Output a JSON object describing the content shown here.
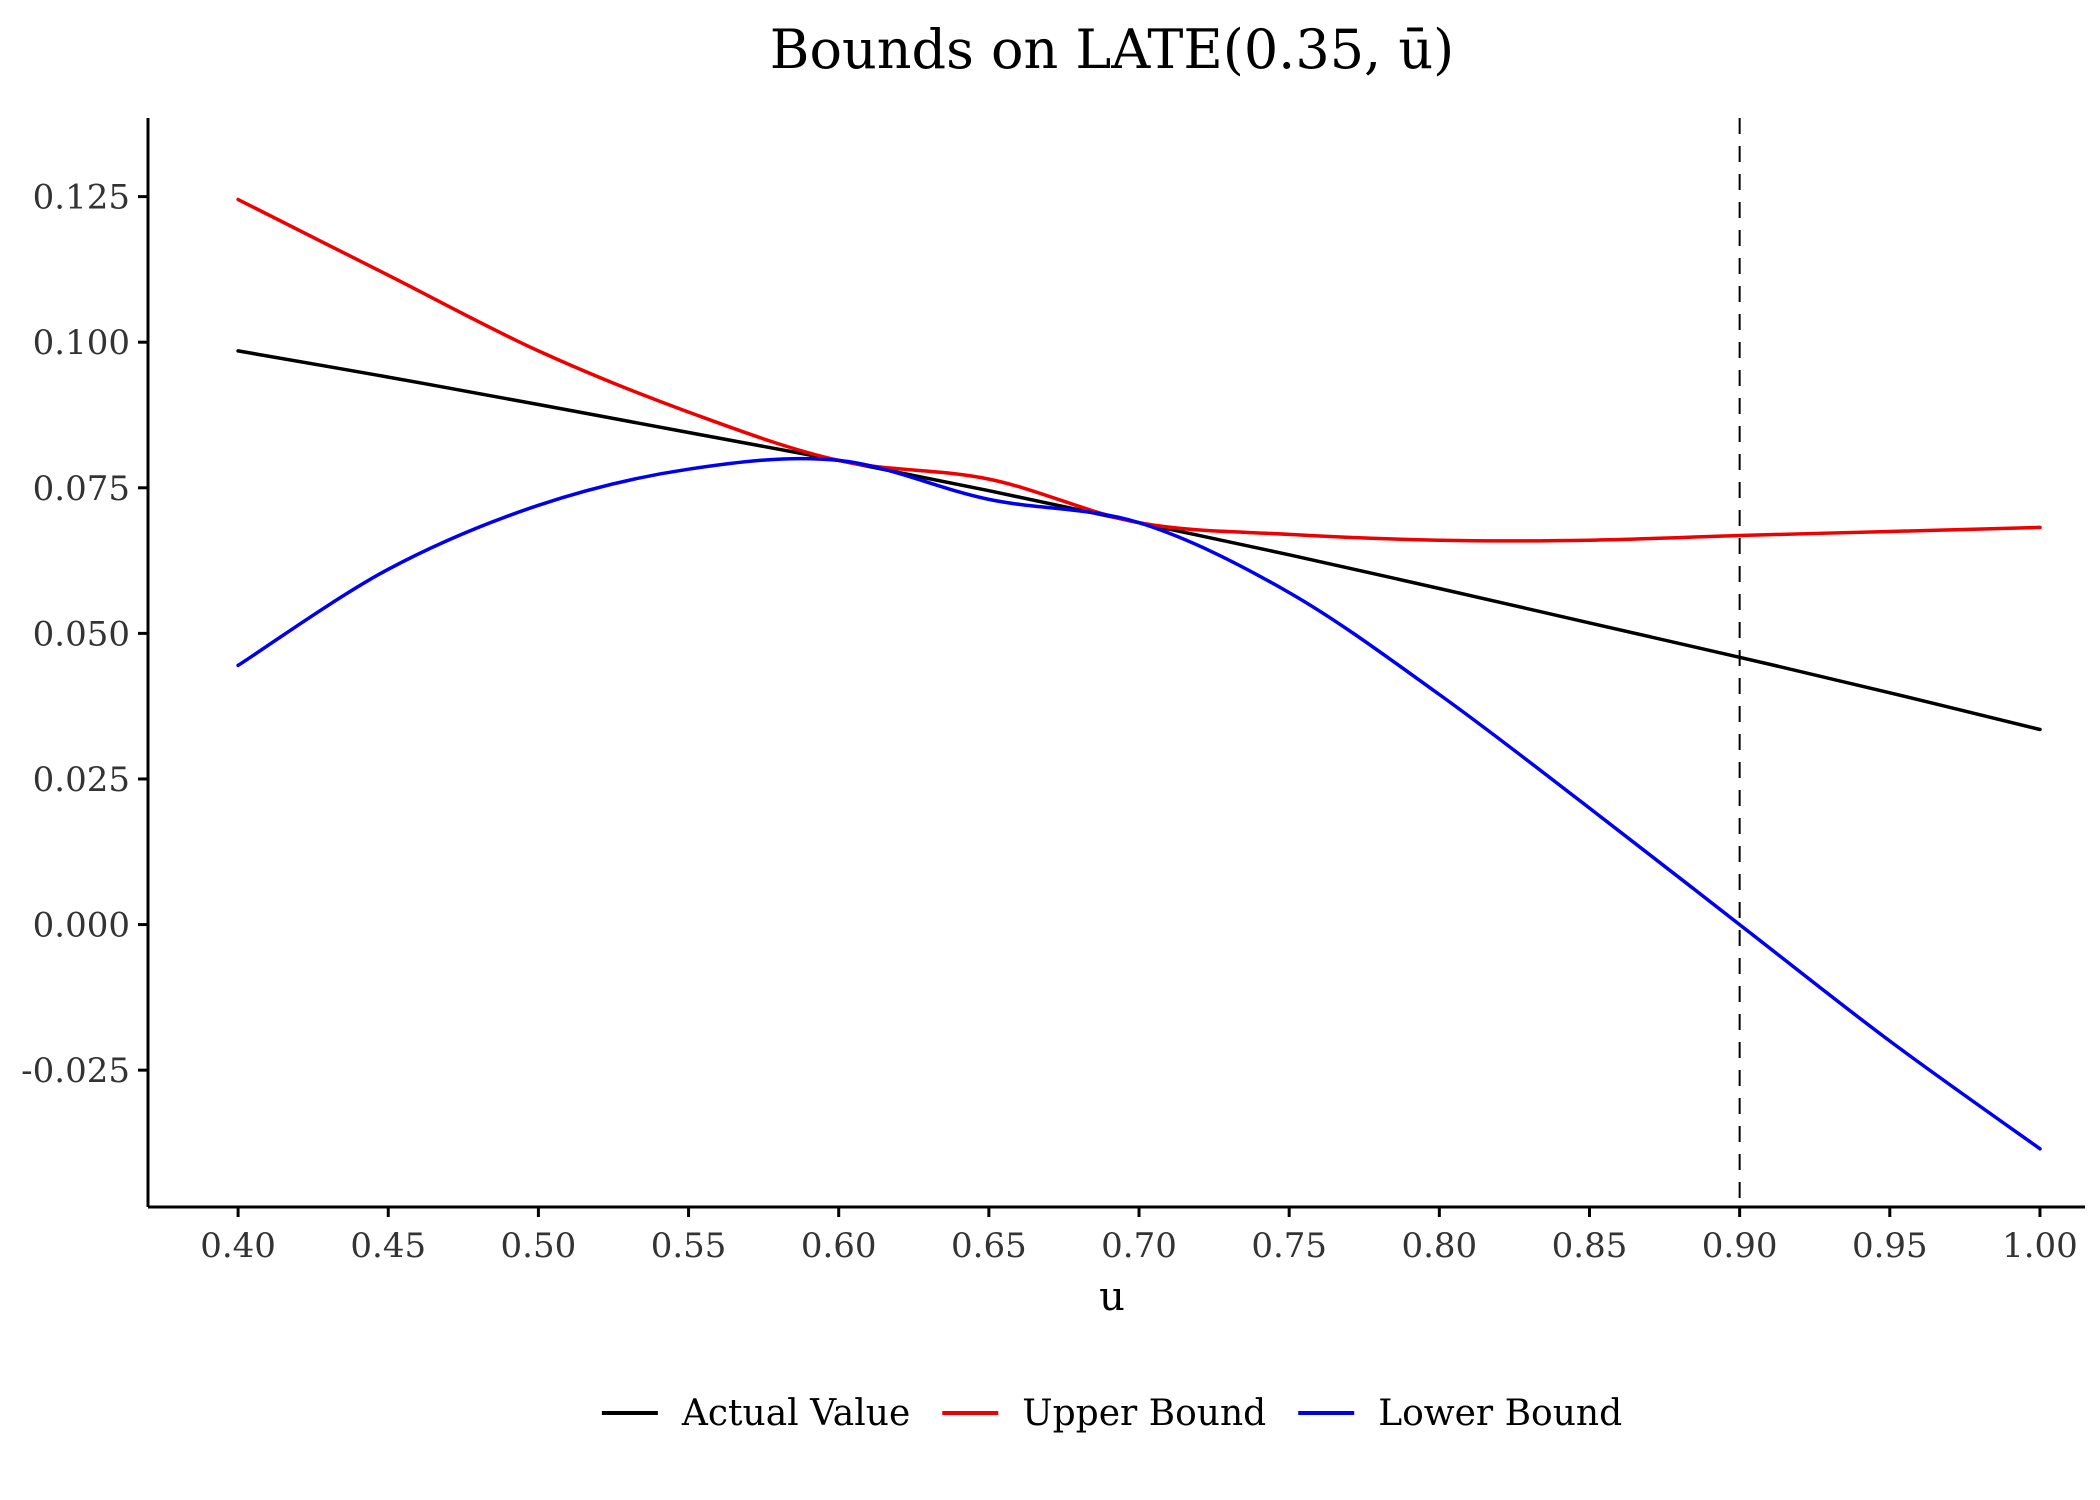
{
  "chart_data": {
    "type": "line",
    "title": "Bounds on LATE(0.35, ū)",
    "xlabel": "u",
    "ylabel": "",
    "xlim": [
      0.37,
      1.015
    ],
    "ylim": [
      -0.0485,
      0.1385
    ],
    "x_ticks": [
      0.4,
      0.45,
      0.5,
      0.55,
      0.6,
      0.65,
      0.7,
      0.75,
      0.8,
      0.85,
      0.9,
      0.95,
      1.0
    ],
    "x_tick_labels": [
      "0.40",
      "0.45",
      "0.50",
      "0.55",
      "0.60",
      "0.65",
      "0.70",
      "0.75",
      "0.80",
      "0.85",
      "0.90",
      "0.95",
      "1.00"
    ],
    "y_ticks": [
      0.125,
      0.1,
      0.075,
      0.05,
      0.025,
      0.0,
      -0.025
    ],
    "y_tick_labels": [
      "0.125",
      "0.100",
      "0.075",
      "0.050",
      "0.025",
      "0.000",
      "-0.025"
    ],
    "grid": false,
    "legend_position": "bottom",
    "reference_lines": [
      {
        "axis": "x",
        "value": 0.9,
        "style": "dashed",
        "color": "#000000"
      }
    ],
    "x": [
      0.4,
      0.45,
      0.5,
      0.55,
      0.6,
      0.65,
      0.7,
      0.75,
      0.8,
      0.85,
      0.9,
      0.95,
      1.0
    ],
    "series": [
      {
        "name": "Actual Value",
        "color": "#000000",
        "values": [
          0.0985,
          0.094,
          0.0893,
          0.0845,
          0.0797,
          0.0745,
          0.069,
          0.0635,
          0.0577,
          0.0518,
          0.0459,
          0.0398,
          0.0335
        ]
      },
      {
        "name": "Upper Bound",
        "color": "#ee0000",
        "values": [
          0.1245,
          0.1115,
          0.0985,
          0.088,
          0.0797,
          0.0765,
          0.069,
          0.067,
          0.066,
          0.066,
          0.0668,
          0.0675,
          0.0682
        ]
      },
      {
        "name": "Lower Bound",
        "color": "#0000ee",
        "values": [
          0.0445,
          0.061,
          0.072,
          0.0782,
          0.0797,
          0.073,
          0.069,
          0.057,
          0.0395,
          0.02,
          0.0,
          -0.02,
          -0.0385
        ]
      }
    ]
  }
}
